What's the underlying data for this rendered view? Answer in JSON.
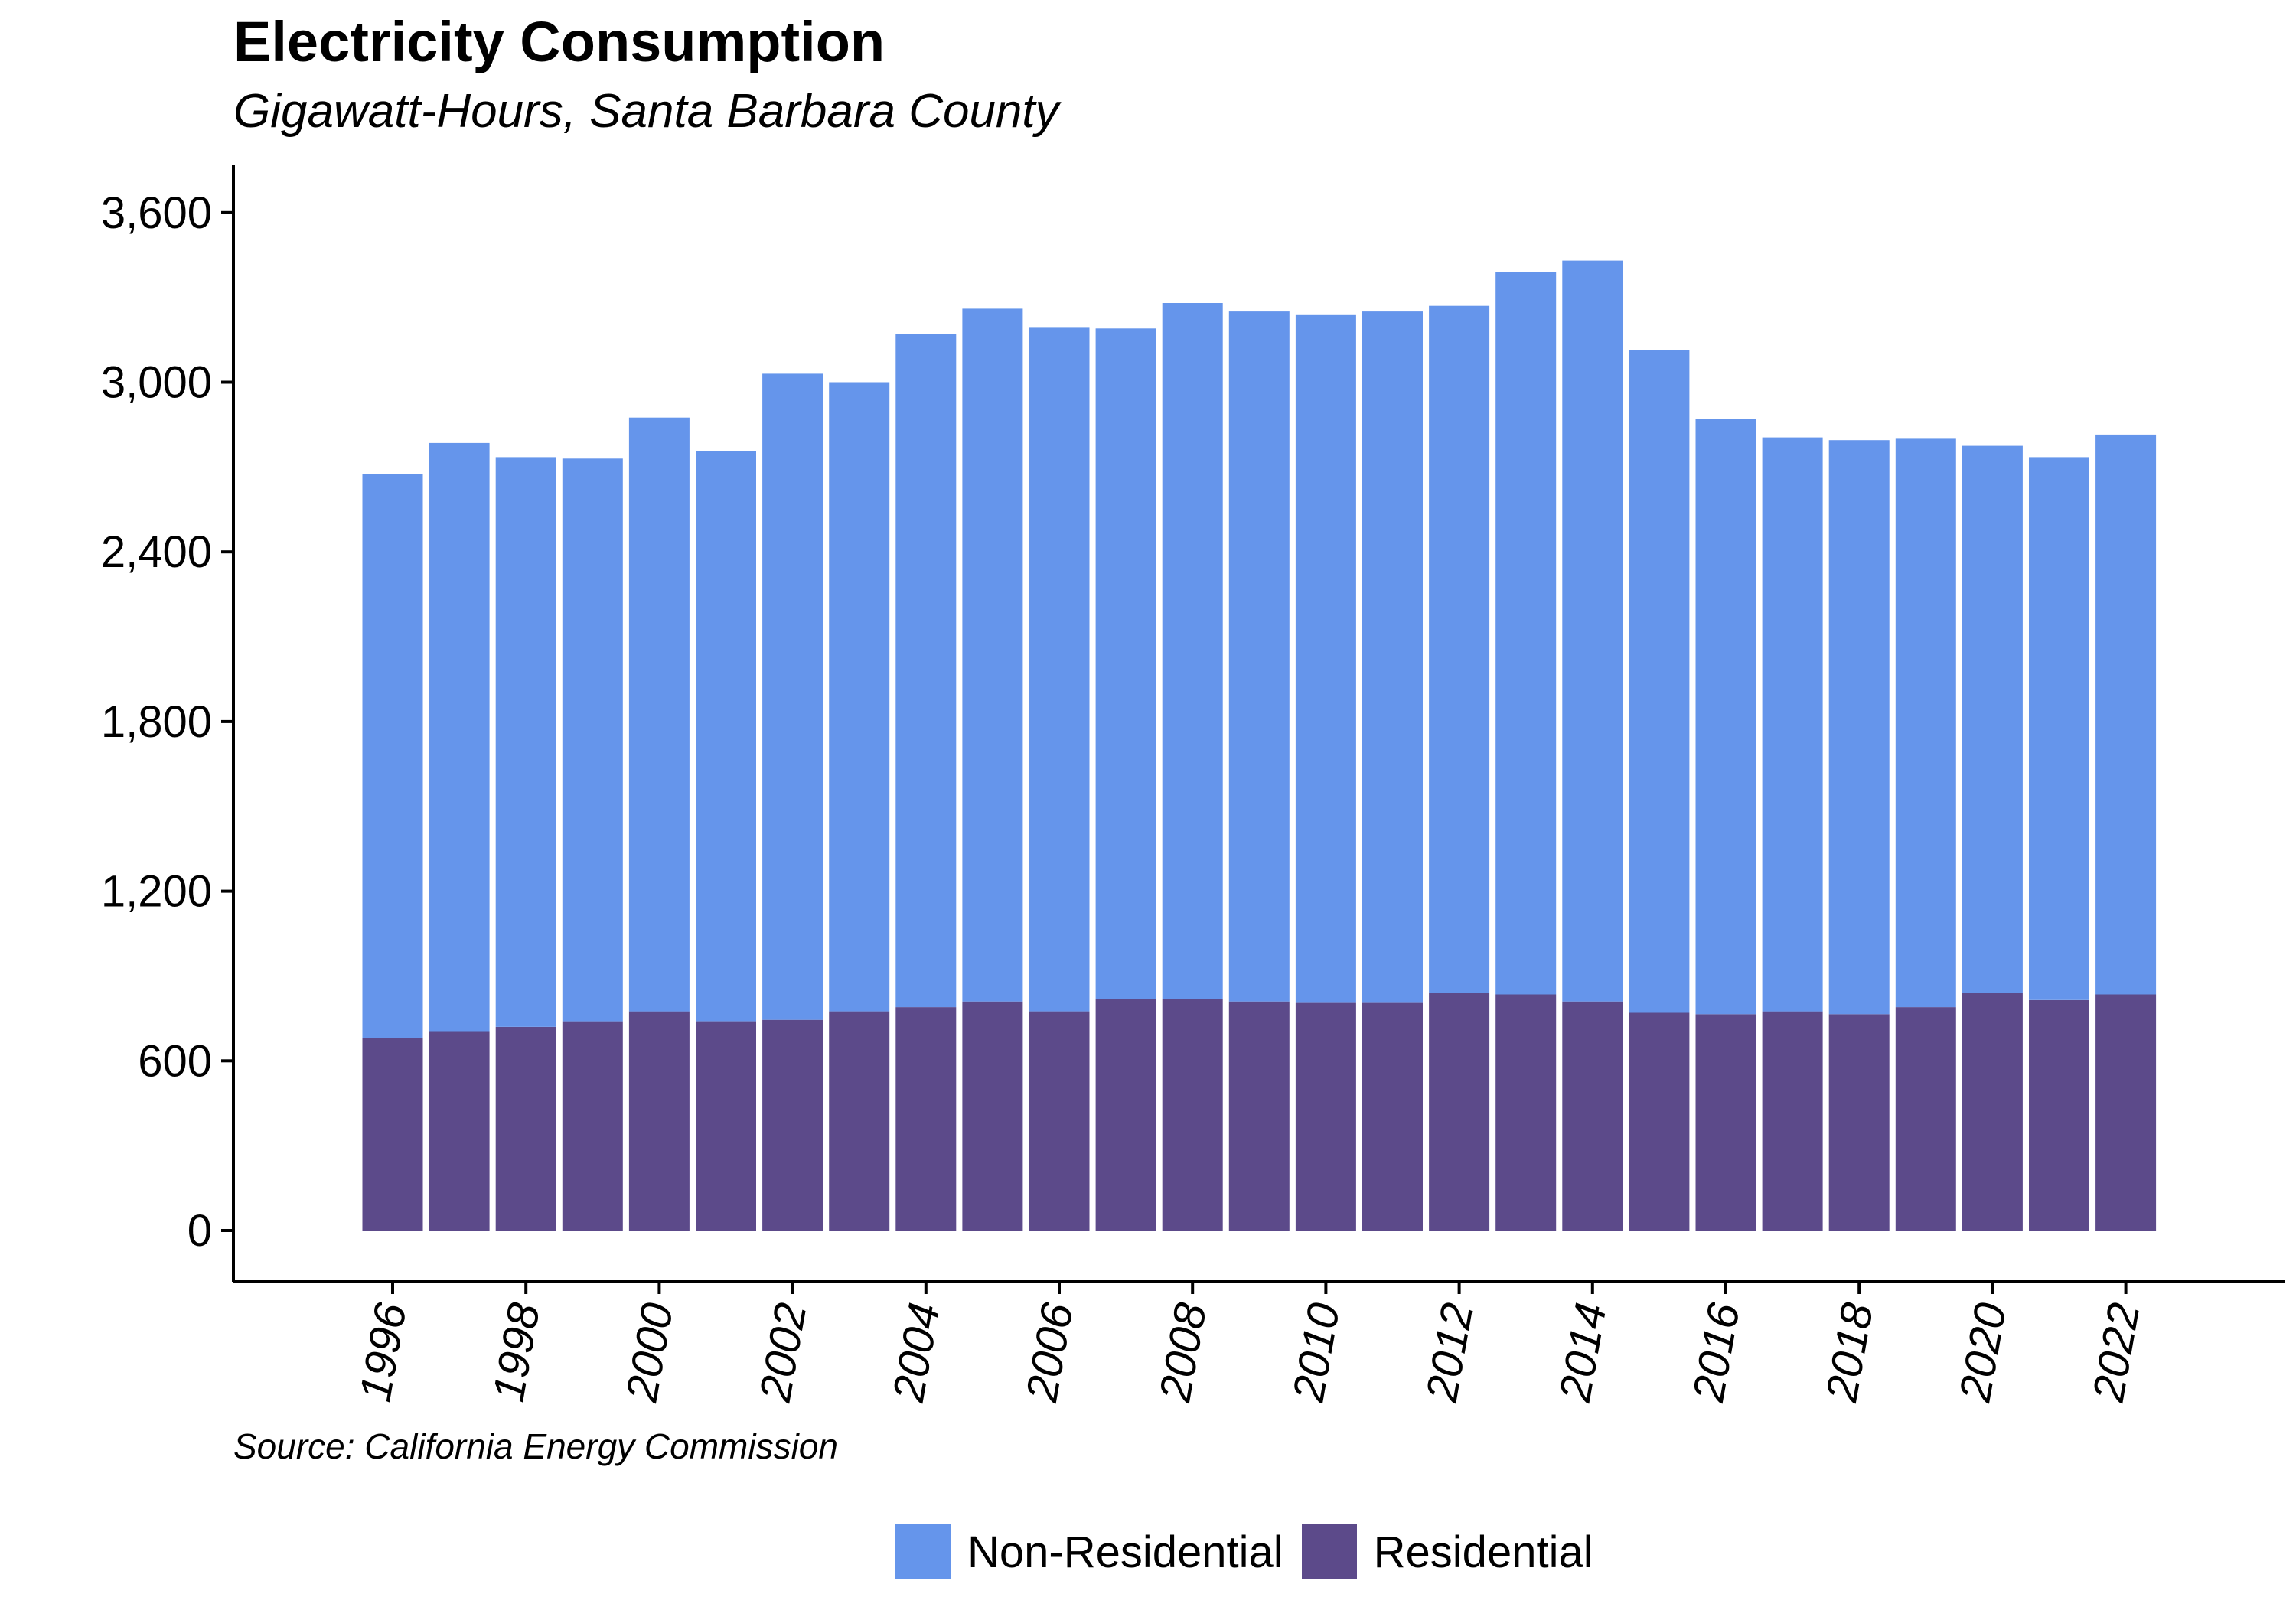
{
  "chart_data": {
    "type": "bar",
    "stacked": true,
    "title": "Electricity Consumption",
    "subtitle": "Gigawatt-Hours, Santa Barbara County",
    "source": "Source: California Energy Commission",
    "xlabel": "",
    "ylabel": "",
    "ylim": [
      0,
      3800
    ],
    "yticks": [
      0,
      600,
      1200,
      1800,
      2400,
      3000,
      3600
    ],
    "ytick_labels": [
      "0",
      "600",
      "1,200",
      "1,800",
      "2,400",
      "3,000",
      "3,600"
    ],
    "xtick_labels": [
      "1996",
      "1998",
      "2000",
      "2002",
      "2004",
      "2006",
      "2008",
      "2010",
      "2012",
      "2014",
      "2016",
      "2018",
      "2020",
      "2022"
    ],
    "grid": false,
    "legend_position": "bottom",
    "categories": [
      "1996",
      "1997",
      "1998",
      "1999",
      "2000",
      "2001",
      "2002",
      "2003",
      "2004",
      "2005",
      "2006",
      "2007",
      "2008",
      "2009",
      "2010",
      "2011",
      "2012",
      "2013",
      "2014",
      "2015",
      "2016",
      "2017",
      "2018",
      "2019",
      "2020",
      "2021",
      "2022"
    ],
    "series": [
      {
        "name": "Residential",
        "color": "#5c4a8a",
        "values": [
          680,
          705,
          720,
          740,
          775,
          740,
          745,
          775,
          790,
          810,
          775,
          820,
          820,
          810,
          805,
          805,
          840,
          835,
          810,
          770,
          765,
          775,
          765,
          790,
          840,
          815,
          835
        ]
      },
      {
        "name": "Non-Residential",
        "color": "#6595eb",
        "values": [
          1995,
          2080,
          2015,
          1990,
          2100,
          2015,
          2285,
          2225,
          2380,
          2450,
          2420,
          2370,
          2460,
          2440,
          2435,
          2445,
          2430,
          2555,
          2620,
          2345,
          2105,
          2030,
          2030,
          2010,
          1935,
          1920,
          1980
        ]
      }
    ]
  }
}
